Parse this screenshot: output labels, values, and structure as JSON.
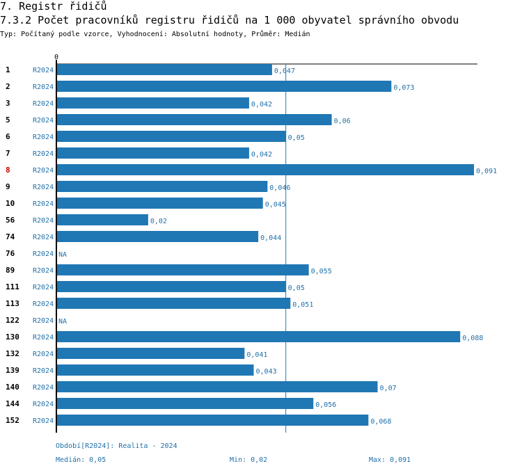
{
  "header": {
    "title": "7. Registr řidičů",
    "subtitle": "7.3.2 Počet pracovníků registru řidičů na 1 000 obyvatel správního obvodu",
    "type_line": "Typ: Počítaný podle vzorce, Vyhodnocení: Absolutní hodnoty, Průměr: Medián"
  },
  "colors": {
    "bar": "#1f77b4",
    "label": "#1f6fa8",
    "highlight": "#cc0000",
    "axis": "#000000",
    "median_line": "#1f77b4"
  },
  "chart_data": {
    "type": "bar",
    "orientation": "horizontal",
    "axis_zero_label": "0",
    "xlim": [
      0,
      0.091
    ],
    "median": 0.05,
    "highlight_category": "8",
    "categories": [
      "1",
      "2",
      "3",
      "5",
      "6",
      "7",
      "8",
      "9",
      "10",
      "56",
      "74",
      "76",
      "89",
      "111",
      "113",
      "122",
      "130",
      "132",
      "139",
      "140",
      "144",
      "152"
    ],
    "series_labels": [
      "R2024",
      "R2024",
      "R2024",
      "R2024",
      "R2024",
      "R2024",
      "R2024",
      "R2024",
      "R2024",
      "R2024",
      "R2024",
      "R2024",
      "R2024",
      "R2024",
      "R2024",
      "R2024",
      "R2024",
      "R2024",
      "R2024",
      "R2024",
      "R2024",
      "R2024"
    ],
    "values": [
      0.047,
      0.073,
      0.042,
      0.06,
      0.05,
      0.042,
      0.091,
      0.046,
      0.045,
      0.02,
      0.044,
      null,
      0.055,
      0.05,
      0.051,
      null,
      0.088,
      0.041,
      0.043,
      0.07,
      0.056,
      0.068
    ],
    "value_labels": [
      "0,047",
      "0,073",
      "0,042",
      "0,06",
      "0,05",
      "0,042",
      "0,091",
      "0,046",
      "0,045",
      "0,02",
      "0,044",
      "NA",
      "0,055",
      "0,05",
      "0,051",
      "NA",
      "0,088",
      "0,041",
      "0,043",
      "0,07",
      "0,056",
      "0,068"
    ]
  },
  "footer": {
    "period": "Období[R2024]: Realita - 2024",
    "median": "Medián: 0,05",
    "min": "Min: 0,02",
    "max": "Max: 0,091"
  }
}
